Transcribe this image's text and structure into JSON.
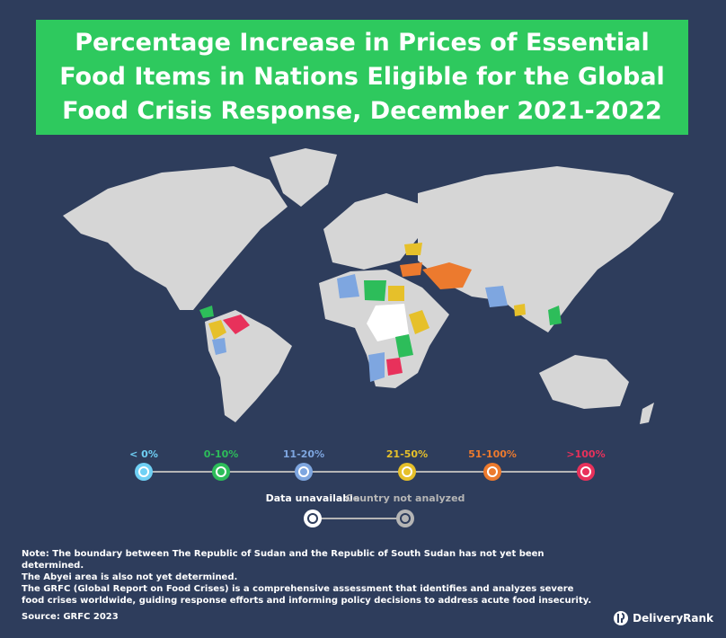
{
  "title": "Percentage Increase in Prices of Essential Food Items in Nations Eligible for the Global Food Crisis Response, December 2021-2022",
  "legend": {
    "items": [
      {
        "label": "< 0%",
        "color": "#6fd0f5"
      },
      {
        "label": "0-10%",
        "color": "#2dbd5a"
      },
      {
        "label": "11-20%",
        "color": "#7ea6e0"
      },
      {
        "label": "21-50%",
        "color": "#e6c02a"
      },
      {
        "label": "51-100%",
        "color": "#ec7a2e"
      },
      {
        "label": ">100%",
        "color": "#e8315b"
      }
    ],
    "secondary": [
      {
        "label": "Data unavailable",
        "color": "#ffffff"
      },
      {
        "label": "Country not analyzed",
        "color": "#b5b5b5"
      }
    ]
  },
  "notes": [
    "Note: The boundary between The Republic of Sudan and the Republic of South Sudan has not yet been determined.",
    "The Abyei area is also not yet determined.",
    "The GRFC (Global Report on Food Crises) is a comprehensive assessment that identifies and analyzes severe food crises worldwide, guiding response efforts and informing policy decisions to address acute food insecurity."
  ],
  "source": "Source: GRFC 2023",
  "brand": "DeliveryRank"
}
